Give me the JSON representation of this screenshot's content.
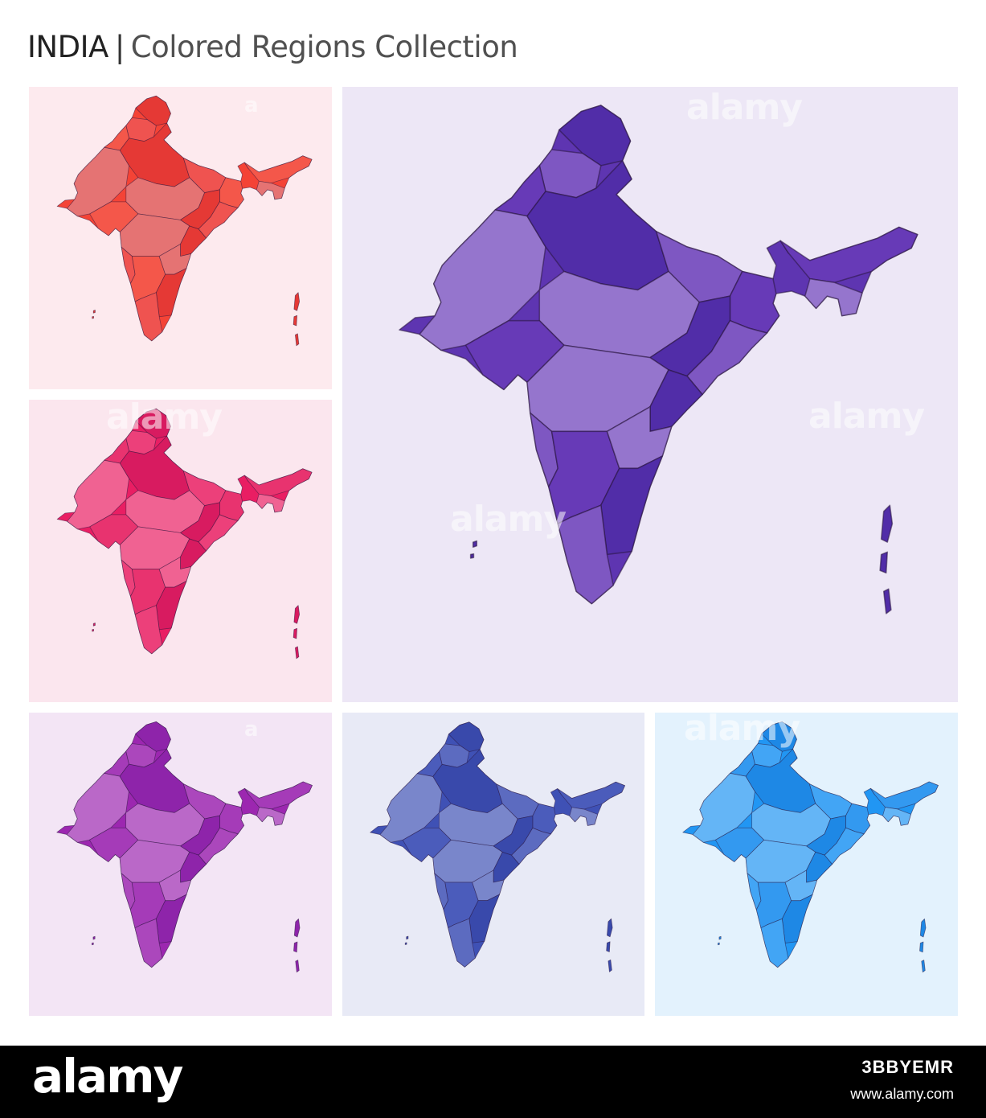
{
  "header": {
    "country": "INDIA",
    "separator": "|",
    "subtitle": "Colored Regions Collection"
  },
  "watermark": {
    "text": "alamy",
    "short": "a"
  },
  "panels": [
    {
      "id": "red",
      "fill": "#f44336",
      "shades": [
        "#e53935",
        "#ef5350",
        "#f4574a",
        "#e57373"
      ],
      "background": "#fdeaee"
    },
    {
      "id": "pink",
      "fill": "#e91e63",
      "shades": [
        "#d81b60",
        "#ec407a",
        "#e8336f",
        "#f06292"
      ],
      "background": "#fbe6ee"
    },
    {
      "id": "purple-large",
      "fill": "#5e35b1",
      "shades": [
        "#512da8",
        "#7e57c2",
        "#673ab7",
        "#9575cd"
      ],
      "background": "#ede7f6"
    },
    {
      "id": "magenta",
      "fill": "#9c27b0",
      "shades": [
        "#8e24aa",
        "#ab47bc",
        "#a53bb8",
        "#ba68c8"
      ],
      "background": "#f3e5f5"
    },
    {
      "id": "indigo",
      "fill": "#3f51b5",
      "shades": [
        "#3949ab",
        "#5c6bc0",
        "#4b5cbb",
        "#7986cb"
      ],
      "background": "#e8eaf6"
    },
    {
      "id": "blue",
      "fill": "#2196f3",
      "shades": [
        "#1e88e5",
        "#42a5f5",
        "#3399f0",
        "#64b5f6"
      ],
      "background": "#e3f2fd"
    }
  ],
  "footer": {
    "logo": "alamy",
    "image_id": "3BBYEMR",
    "site": "www.alamy.com"
  }
}
